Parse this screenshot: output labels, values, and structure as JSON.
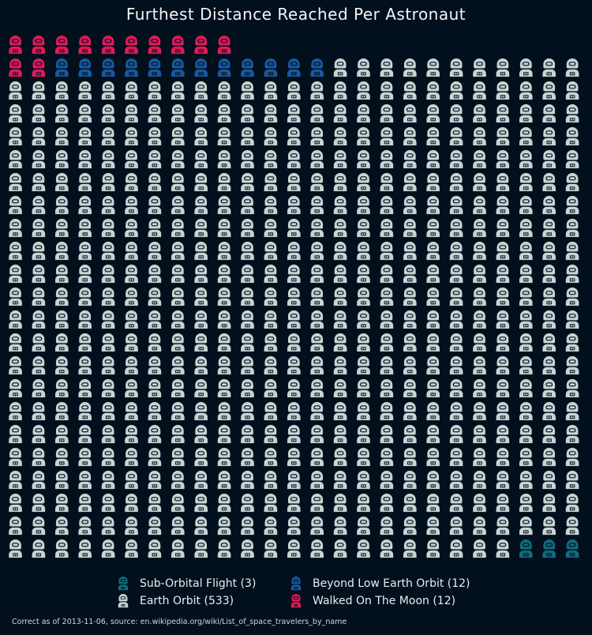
{
  "chart_data": {
    "type": "waffle",
    "title": "Furthest Distance Reached Per Astronaut",
    "total": 560,
    "columns": 25,
    "categories": [
      {
        "key": "moon",
        "label": "Walked On The Moon",
        "count": 12,
        "color": "#e0195a"
      },
      {
        "key": "beyond",
        "label": "Beyond Low Earth Orbit",
        "count": 12,
        "color": "#17599e"
      },
      {
        "key": "orbit",
        "label": "Earth Orbit",
        "count": 533,
        "color": "#c6d5d3"
      },
      {
        "key": "sub",
        "label": "Sub-Orbital Flight",
        "count": 3,
        "color": "#0f6b7e"
      }
    ],
    "legend": [
      {
        "key": "sub",
        "text": "Sub-Orbital Flight (3)",
        "color": "#0f6b7e"
      },
      {
        "key": "beyond",
        "text": "Beyond Low Earth Orbit (12)",
        "color": "#17599e"
      },
      {
        "key": "orbit",
        "text": "Earth Orbit (533)",
        "color": "#c6d5d3"
      },
      {
        "key": "moon",
        "text": "Walked On The Moon (12)",
        "color": "#e0195a"
      }
    ],
    "legend_placement": "bottom-center"
  },
  "footnote": "Correct as of 2013-11-06, source: en.wikipedia.org/wiki/List_of_space_travelers_by_name"
}
